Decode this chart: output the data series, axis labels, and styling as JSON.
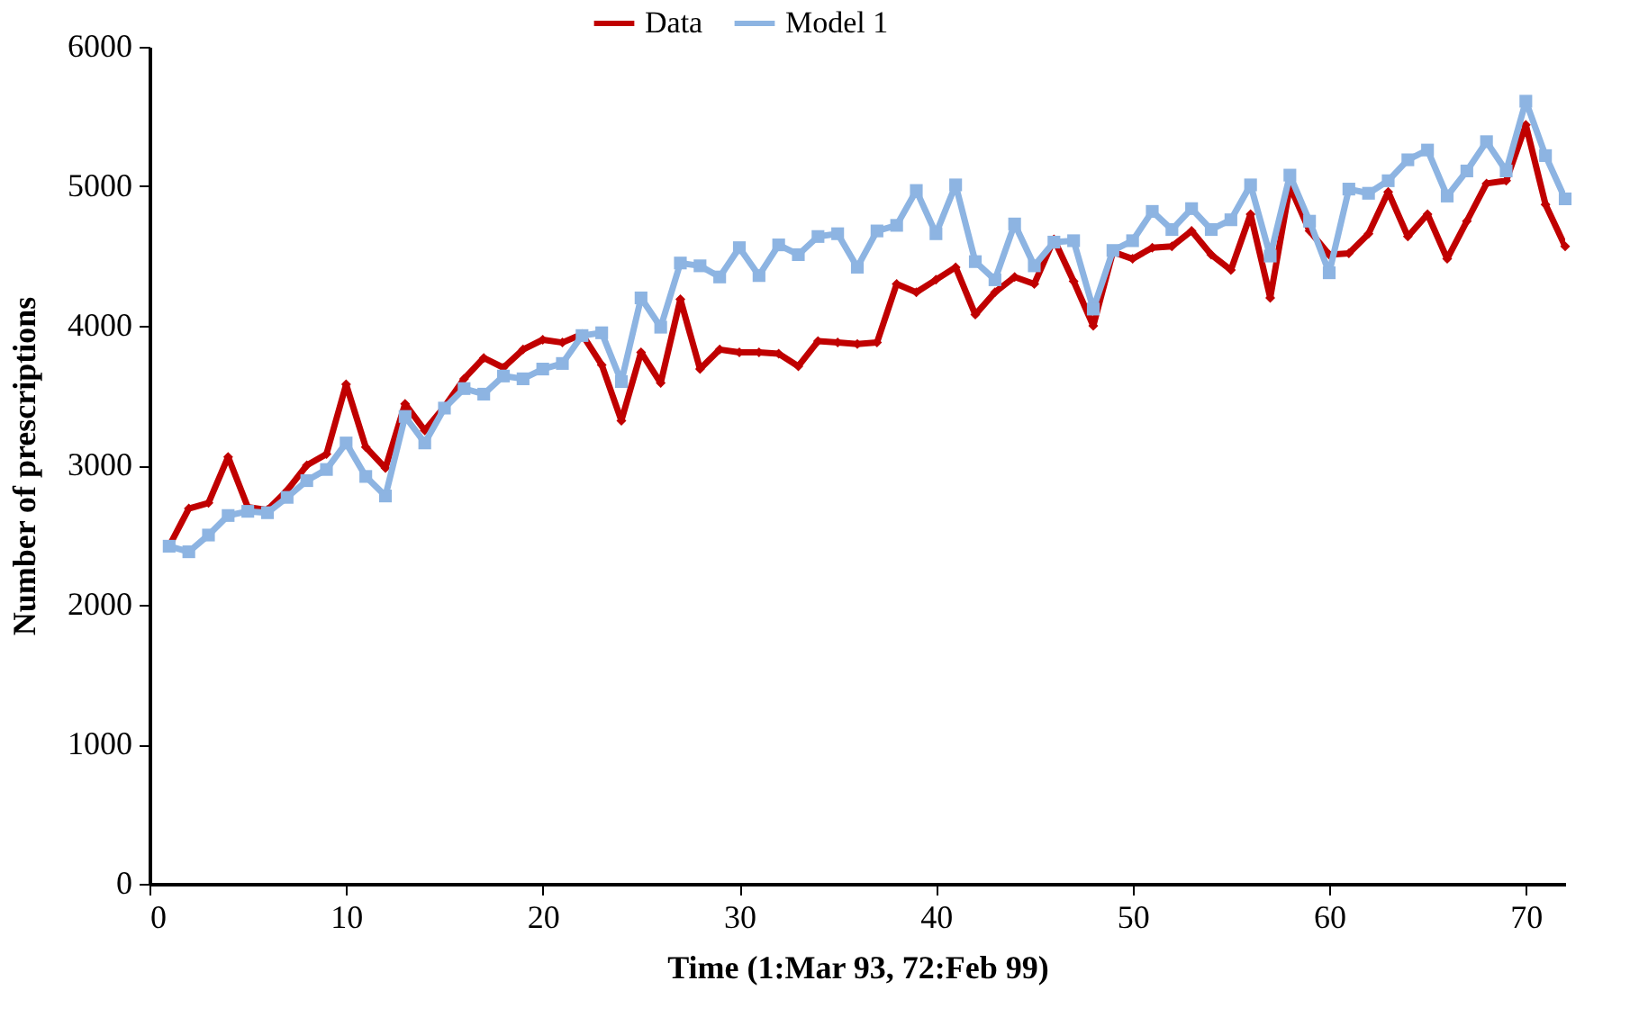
{
  "chart_data": {
    "type": "line",
    "xlabel": "Time (1:Mar 93, 72:Feb 99)",
    "ylabel": "Number of prescriptions",
    "legend": "top",
    "grid": false,
    "line_style": "solid",
    "x": [
      1,
      2,
      3,
      4,
      5,
      6,
      7,
      8,
      9,
      10,
      11,
      12,
      13,
      14,
      15,
      16,
      17,
      18,
      19,
      20,
      21,
      22,
      23,
      24,
      25,
      26,
      27,
      28,
      29,
      30,
      31,
      32,
      33,
      34,
      35,
      36,
      37,
      38,
      39,
      40,
      41,
      42,
      43,
      44,
      45,
      46,
      47,
      48,
      49,
      50,
      51,
      52,
      53,
      54,
      55,
      56,
      57,
      58,
      59,
      60,
      61,
      62,
      63,
      64,
      65,
      66,
      67,
      68,
      69,
      70,
      71,
      72
    ],
    "xlim": [
      0,
      72
    ],
    "xticks": [
      0,
      10,
      20,
      30,
      40,
      50,
      60,
      70
    ],
    "ylim": [
      0,
      6000
    ],
    "yticks": [
      0,
      1000,
      2000,
      3000,
      4000,
      5000,
      6000
    ],
    "series": [
      {
        "name": "Data",
        "color": "#c00000",
        "marker": "diamond",
        "values": [
          2420,
          2690,
          2730,
          3060,
          2700,
          2680,
          2820,
          3000,
          3080,
          3580,
          3130,
          2980,
          3440,
          3250,
          3420,
          3620,
          3770,
          3700,
          3830,
          3900,
          3880,
          3940,
          3720,
          3320,
          3810,
          3590,
          4190,
          3690,
          3830,
          3810,
          3810,
          3800,
          3710,
          3890,
          3880,
          3870,
          3880,
          4300,
          4240,
          4330,
          4420,
          4080,
          4240,
          4350,
          4300,
          4620,
          4320,
          4000,
          4530,
          4480,
          4560,
          4570,
          4680,
          4510,
          4400,
          4800,
          4200,
          5000,
          4680,
          4510,
          4520,
          4660,
          4960,
          4640,
          4800,
          4480,
          4750,
          5020,
          5040,
          5440,
          4870,
          4570
        ]
      },
      {
        "name": "Model 1",
        "color": "#8db4e2",
        "marker": "square",
        "values": [
          2420,
          2380,
          2500,
          2640,
          2670,
          2660,
          2770,
          2890,
          2970,
          3160,
          2920,
          2780,
          3350,
          3160,
          3410,
          3550,
          3510,
          3640,
          3620,
          3690,
          3730,
          3930,
          3950,
          3600,
          4200,
          3990,
          4450,
          4430,
          4350,
          4560,
          4360,
          4580,
          4510,
          4640,
          4660,
          4420,
          4680,
          4720,
          4970,
          4660,
          5010,
          4460,
          4330,
          4730,
          4430,
          4600,
          4610,
          4120,
          4540,
          4610,
          4820,
          4690,
          4840,
          4690,
          4760,
          5010,
          4500,
          5080,
          4750,
          4380,
          4980,
          4950,
          5040,
          5190,
          5260,
          4930,
          5110,
          5320,
          5110,
          5610,
          5220,
          4910
        ]
      }
    ]
  }
}
